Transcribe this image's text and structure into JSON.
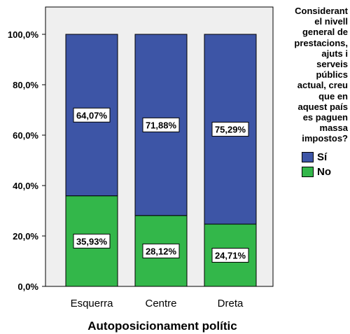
{
  "chart_data": {
    "type": "bar",
    "stacked": true,
    "categories": [
      "Esquerra",
      "Centre",
      "Dreta"
    ],
    "series": [
      {
        "name": "No",
        "color": "#33b74a",
        "values": [
          35.93,
          28.12,
          24.71
        ],
        "labels": [
          "35,93%",
          "28,12%",
          "24,71%"
        ]
      },
      {
        "name": "Sí",
        "color": "#3d55a6",
        "values": [
          64.07,
          71.88,
          75.29
        ],
        "labels": [
          "64,07%",
          "71,88%",
          "75,29%"
        ]
      }
    ],
    "xlabel": "Autoposicionament polític",
    "ylabel": "",
    "ylim": [
      0,
      100
    ],
    "yticks": [
      {
        "value": 0,
        "label": "0,0%"
      },
      {
        "value": 20,
        "label": "20,0%"
      },
      {
        "value": 40,
        "label": "40,0%"
      },
      {
        "value": 60,
        "label": "60,0%"
      },
      {
        "value": 80,
        "label": "80,0%"
      },
      {
        "value": 100,
        "label": "100,0%"
      }
    ],
    "grid": false,
    "plot_background": "#efefef",
    "legend": {
      "title": "Considerant el nivell general de prestacions, ajuts i serveis públics actual, creu que en aquest país es paguen massa impostos?",
      "title_lines": [
        "Considerant",
        "el nivell",
        "general de",
        "prestacions,",
        "ajuts i",
        "serveis",
        "públics",
        "actual, creu",
        "que en",
        "aquest país",
        "es paguen",
        "massa",
        "impostos?"
      ],
      "entries": [
        {
          "label": "Sí",
          "color": "#3d55a6"
        },
        {
          "label": "No",
          "color": "#33b74a"
        }
      ],
      "position": "right"
    }
  }
}
